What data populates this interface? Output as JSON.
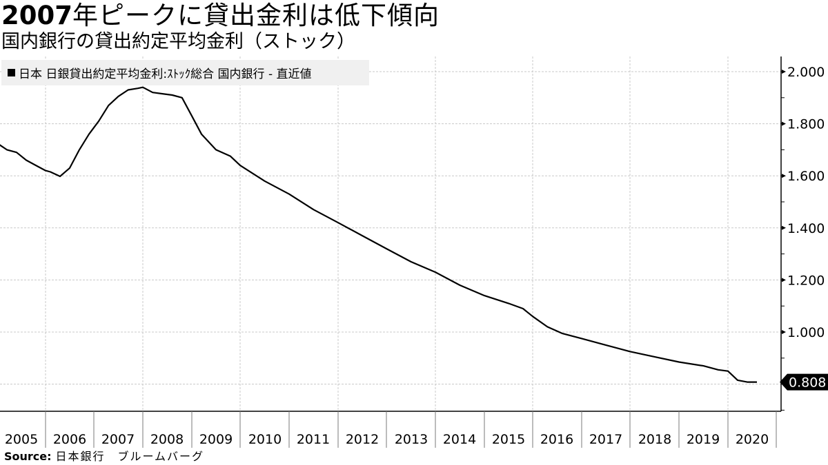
{
  "header": {
    "title_bold": "2007",
    "title_rest": "年ピークに貸出金利は低下傾向",
    "subtitle": "国内銀行の貸出約定平均金利（ストック）"
  },
  "legend": {
    "label": "日本 日銀貸出約定平均金利:ｽﾄｯｸ総合 国内銀行 - 直近値"
  },
  "footer": {
    "source_label": "Source:",
    "source_text": "日本銀行　ブルームバーグ"
  },
  "colors": {
    "line": "#000000",
    "grid": "#c8c8c8",
    "legend_bg": "#f0f0f0",
    "last_value_bg": "#000000",
    "last_value_text": "#ffffff"
  },
  "chart_data": {
    "type": "line",
    "title": "2007年ピークに貸出金利は低下傾向",
    "subtitle": "国内銀行の貸出約定平均金利（ストック）",
    "xlabel": "",
    "ylabel": "",
    "x_tick_labels": [
      "2005",
      "2006",
      "2007",
      "2008",
      "2009",
      "2010",
      "2011",
      "2012",
      "2013",
      "2014",
      "2015",
      "2016",
      "2017",
      "2018",
      "2019",
      "2020"
    ],
    "y_tick_labels": [
      "2.000",
      "1.800",
      "1.600",
      "1.400",
      "1.200",
      "1.000"
    ],
    "ylim": [
      0.7,
      2.05
    ],
    "y_axis_position": "right",
    "grid": true,
    "legend": [
      "日本 日銀貸出約定平均金利:ｽﾄｯｸ総合 国内銀行 - 直近値"
    ],
    "legend_position": "top-left",
    "last_value_label": "0.808",
    "series": [
      {
        "name": "日本 日銀貸出約定平均金利:ｽﾄｯｸ総合 国内銀行 - 直近値",
        "x": [
          2005.0,
          2005.2,
          2005.4,
          2005.6,
          2005.8,
          2006.0,
          2006.1,
          2006.3,
          2006.5,
          2006.7,
          2006.9,
          2007.1,
          2007.3,
          2007.5,
          2007.7,
          2007.9,
          2008.0,
          2008.2,
          2008.4,
          2008.6,
          2008.8,
          2009.0,
          2009.2,
          2009.5,
          2009.8,
          2010.0,
          2010.5,
          2011.0,
          2011.5,
          2012.0,
          2012.5,
          2013.0,
          2013.5,
          2014.0,
          2014.5,
          2015.0,
          2015.5,
          2015.8,
          2016.0,
          2016.3,
          2016.6,
          2017.0,
          2017.5,
          2018.0,
          2018.5,
          2019.0,
          2019.5,
          2019.8,
          2020.0,
          2020.2,
          2020.4,
          2020.6
        ],
        "y": [
          1.725,
          1.7,
          1.69,
          1.66,
          1.64,
          1.62,
          1.615,
          1.598,
          1.63,
          1.7,
          1.76,
          1.81,
          1.87,
          1.905,
          1.93,
          1.936,
          1.94,
          1.92,
          1.915,
          1.91,
          1.9,
          1.83,
          1.76,
          1.7,
          1.675,
          1.64,
          1.58,
          1.53,
          1.47,
          1.42,
          1.37,
          1.32,
          1.27,
          1.23,
          1.18,
          1.14,
          1.11,
          1.09,
          1.06,
          1.02,
          0.995,
          0.975,
          0.95,
          0.925,
          0.905,
          0.885,
          0.87,
          0.855,
          0.85,
          0.815,
          0.808,
          0.808
        ]
      }
    ]
  }
}
